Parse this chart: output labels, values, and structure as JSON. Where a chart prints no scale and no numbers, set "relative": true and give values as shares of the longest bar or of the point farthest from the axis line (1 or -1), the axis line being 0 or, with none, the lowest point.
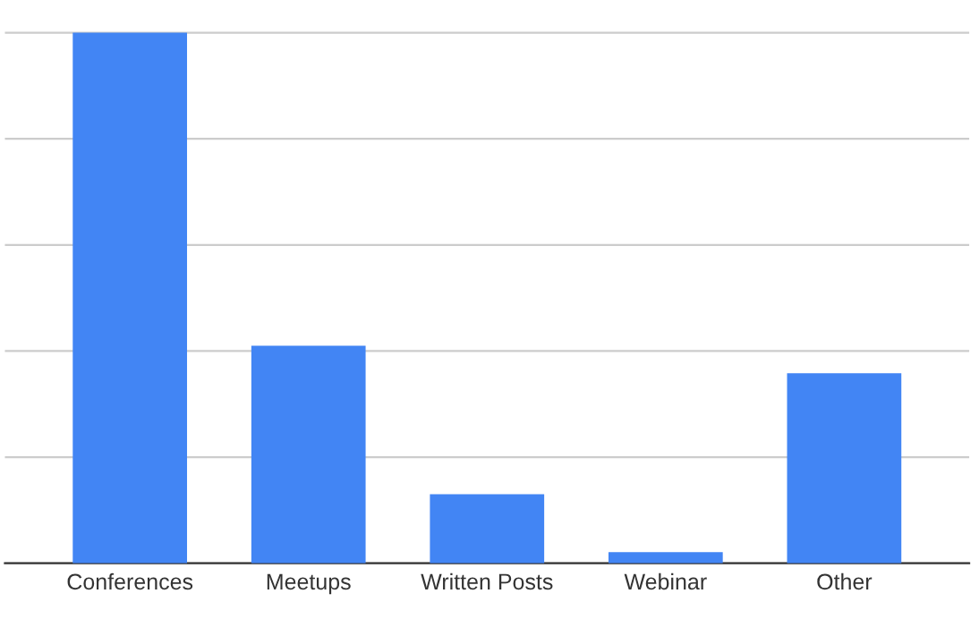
{
  "chart_data": {
    "type": "bar",
    "relative": true,
    "categories": [
      "Conferences",
      "Meetups",
      "Written Posts",
      "Webinar",
      "Other"
    ],
    "values": [
      1,
      0.41,
      0.13,
      0.021,
      0.358
    ],
    "color": "#4285f4",
    "grid": "y",
    "legend": false
  }
}
